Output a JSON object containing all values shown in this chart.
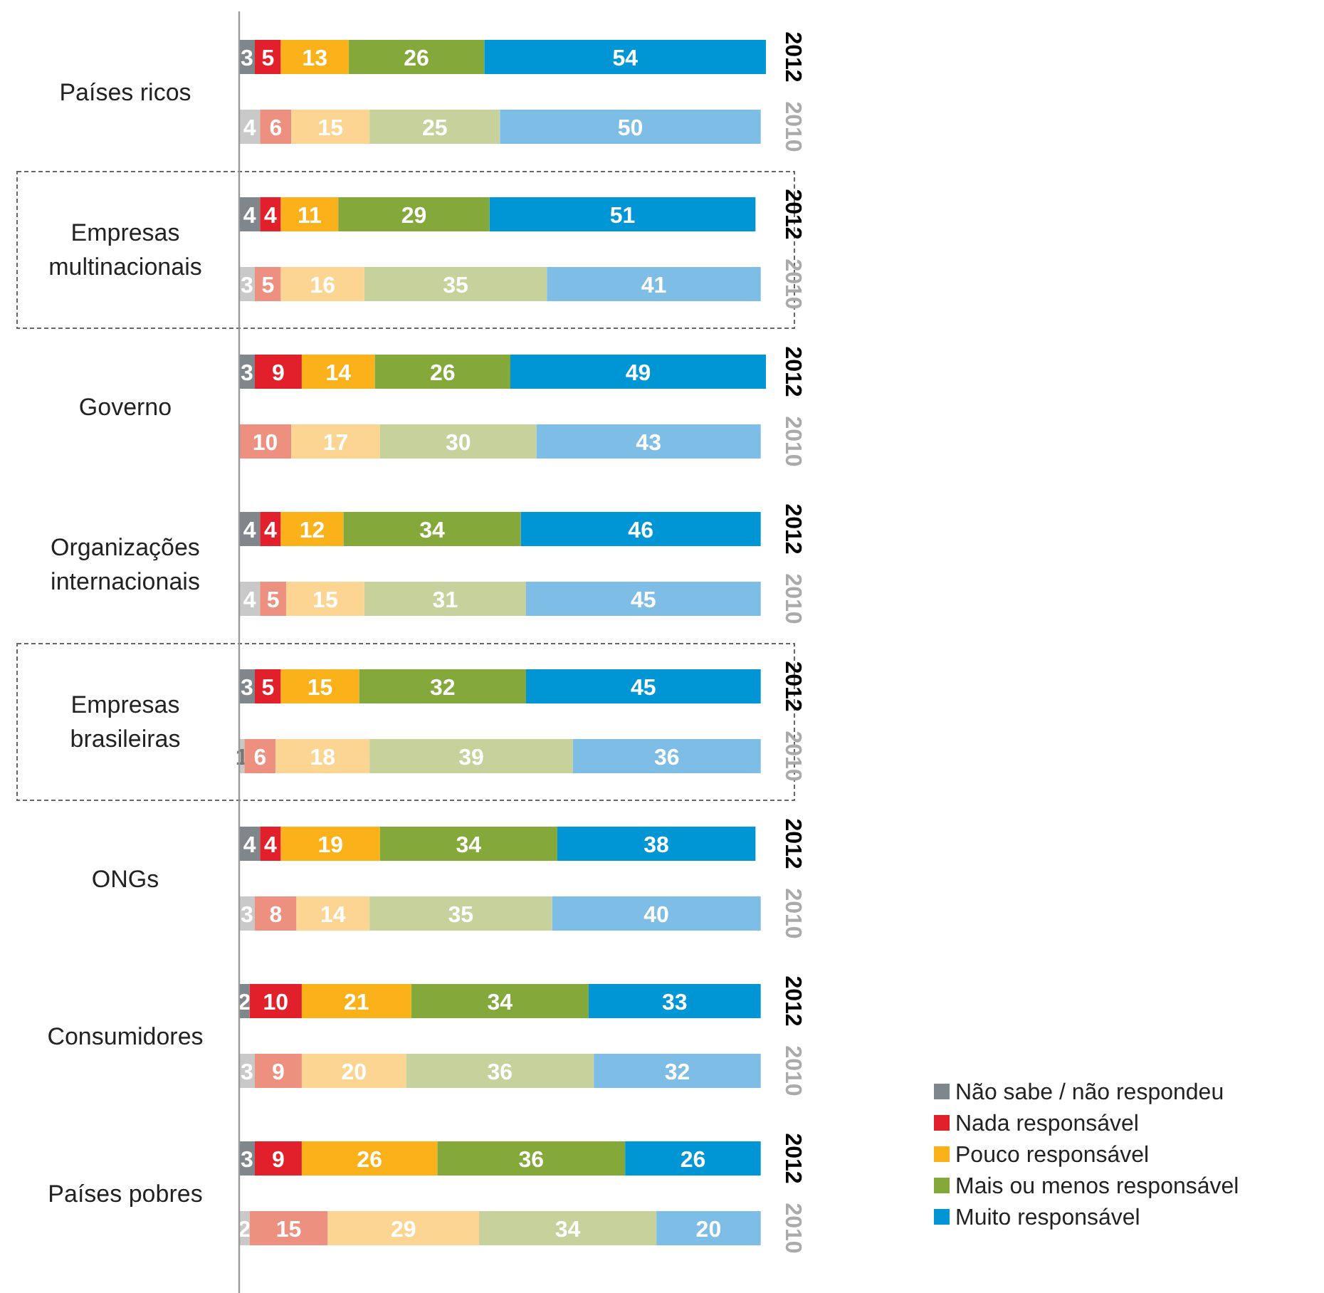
{
  "chart_data": {
    "type": "bar",
    "orientation": "horizontal",
    "stacked": true,
    "data_labels": true,
    "legend": "bottom right",
    "tick_labels": "y",
    "xlim": [
      0,
      101
    ],
    "categories": [
      "2012",
      "2010",
      "2012",
      "2010",
      "2012",
      "2010",
      "2012",
      "2010",
      "2012",
      "2010",
      "2012",
      "2010",
      "2012",
      "2010",
      "2012",
      "2010"
    ],
    "annotations": [
      "Países ricos",
      "Empresas multinacionais",
      "Governo",
      "Organizações internacionais",
      "Empresas brasileiras",
      "ONGs",
      "Consumidores",
      "Países pobres"
    ],
    "series": [
      {
        "name": "Não sabe / não respondeu",
        "color": "#7f868c",
        "colors": [
          "#7f868c",
          "#c9c9c9",
          "#7f868c",
          "#c9c9c9",
          "#7f868c",
          null,
          "#7f868c",
          "#c9c9c9",
          "#7f868c",
          "#c9c9c9",
          "#7f868c",
          "#c9c9c9",
          "#7f868c",
          "#c9c9c9",
          "#7f868c",
          "#c9c9c9"
        ],
        "values": [
          3,
          4,
          4,
          3,
          3,
          null,
          4,
          4,
          3,
          1,
          4,
          3,
          2,
          3,
          3,
          2
        ]
      },
      {
        "name": "Nada responsável",
        "color": "#e2202b",
        "colors": [
          "#e2202b",
          "#ee9080",
          "#e2202b",
          "#ee9080",
          "#e2202b",
          "#ee9080",
          "#e2202b",
          "#ee9080",
          "#e2202b",
          "#ee9080",
          "#e2202b",
          "#ee9080",
          "#e2202b",
          "#ee9080",
          "#e2202b",
          "#ee9080"
        ],
        "values": [
          5,
          6,
          4,
          5,
          9,
          10,
          4,
          5,
          5,
          6,
          4,
          8,
          10,
          9,
          9,
          15
        ]
      },
      {
        "name": "Pouco responsável",
        "color": "#fbb21a",
        "colors": [
          "#fbb21a",
          "#fdd592",
          "#fbb21a",
          "#fdd592",
          "#fbb21a",
          "#fdd592",
          "#fbb21a",
          "#fdd592",
          "#fbb21a",
          "#fdd592",
          "#fbb21a",
          "#fdd592",
          "#fbb21a",
          "#fdd592",
          "#fbb21a",
          "#fdd592"
        ],
        "values": [
          13,
          15,
          11,
          16,
          14,
          17,
          12,
          15,
          15,
          18,
          19,
          14,
          21,
          20,
          26,
          29
        ]
      },
      {
        "name": "Mais ou menos responsável",
        "color": "#84a83a",
        "colors": [
          "#84a83a",
          "#c6d19b",
          "#84a83a",
          "#c6d19b",
          "#84a83a",
          "#c6d19b",
          "#84a83a",
          "#c6d19b",
          "#84a83a",
          "#c6d19b",
          "#84a83a",
          "#c6d19b",
          "#84a83a",
          "#c6d19b",
          "#84a83a",
          "#c6d19b"
        ],
        "values": [
          26,
          25,
          29,
          35,
          26,
          30,
          34,
          31,
          32,
          39,
          34,
          35,
          34,
          36,
          36,
          34
        ]
      },
      {
        "name": "Muito responsável",
        "color": "#0096d5",
        "colors": [
          "#0096d5",
          "#7dbde6",
          "#0096d5",
          "#7dbde6",
          "#0096d5",
          "#7dbde6",
          "#0096d5",
          "#7dbde6",
          "#0096d5",
          "#7dbde6",
          "#0096d5",
          "#7dbde6",
          "#0096d5",
          "#7dbde6",
          "#0096d5",
          "#7dbde6"
        ],
        "values": [
          54,
          50,
          51,
          41,
          49,
          43,
          46,
          45,
          45,
          36,
          38,
          40,
          33,
          32,
          26,
          20
        ]
      }
    ]
  }
}
